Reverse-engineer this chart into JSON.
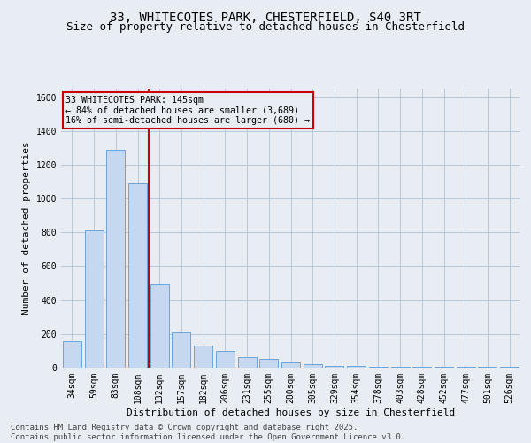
{
  "title1": "33, WHITECOTES PARK, CHESTERFIELD, S40 3RT",
  "title2": "Size of property relative to detached houses in Chesterfield",
  "xlabel": "Distribution of detached houses by size in Chesterfield",
  "ylabel": "Number of detached properties",
  "categories": [
    "34sqm",
    "59sqm",
    "83sqm",
    "108sqm",
    "132sqm",
    "157sqm",
    "182sqm",
    "206sqm",
    "231sqm",
    "255sqm",
    "280sqm",
    "305sqm",
    "329sqm",
    "354sqm",
    "378sqm",
    "403sqm",
    "428sqm",
    "452sqm",
    "477sqm",
    "501sqm",
    "526sqm"
  ],
  "values": [
    155,
    810,
    1290,
    1090,
    490,
    210,
    130,
    100,
    65,
    50,
    30,
    20,
    8,
    8,
    3,
    3,
    3,
    3,
    3,
    3,
    3
  ],
  "bar_color": "#c5d8ef",
  "bar_edge_color": "#5b9bd5",
  "bg_color": "#e8edf4",
  "grid_color": "#b8c8dc",
  "vline_x": 3.5,
  "vline_color": "#cc0000",
  "annotation_text": "33 WHITECOTES PARK: 145sqm\n← 84% of detached houses are smaller (3,689)\n16% of semi-detached houses are larger (680) →",
  "annotation_box_color": "#cc0000",
  "ylim": [
    0,
    1650
  ],
  "yticks": [
    0,
    200,
    400,
    600,
    800,
    1000,
    1200,
    1400,
    1600
  ],
  "footer": "Contains HM Land Registry data © Crown copyright and database right 2025.\nContains public sector information licensed under the Open Government Licence v3.0.",
  "title_fontsize": 10,
  "subtitle_fontsize": 9,
  "axis_label_fontsize": 8,
  "tick_fontsize": 7,
  "footer_fontsize": 6.5
}
